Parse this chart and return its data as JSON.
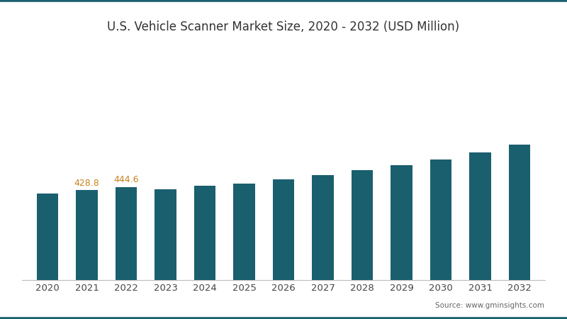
{
  "title": "U.S. Vehicle Scanner Market Size, 2020 - 2032 (USD Million)",
  "years": [
    2020,
    2021,
    2022,
    2023,
    2024,
    2025,
    2026,
    2027,
    2028,
    2029,
    2030,
    2031,
    2032
  ],
  "values": [
    413.0,
    428.8,
    444.6,
    432.0,
    449.0,
    461.0,
    480.0,
    502.0,
    523.0,
    548.0,
    575.0,
    608.0,
    645.0
  ],
  "bar_color": "#1a5f6e",
  "annotate_color": "#c8821a",
  "annotate_years": [
    2021,
    2022
  ],
  "annotate_values": [
    428.8,
    444.6
  ],
  "source_text": "Source: www.gminsights.com",
  "source_color": "#666666",
  "title_color": "#333333",
  "background_color": "#ffffff",
  "border_color": "#1a5f6e",
  "ylim": [
    0,
    1100
  ],
  "title_fontsize": 12,
  "tick_fontsize": 9.5,
  "bar_width": 0.55
}
